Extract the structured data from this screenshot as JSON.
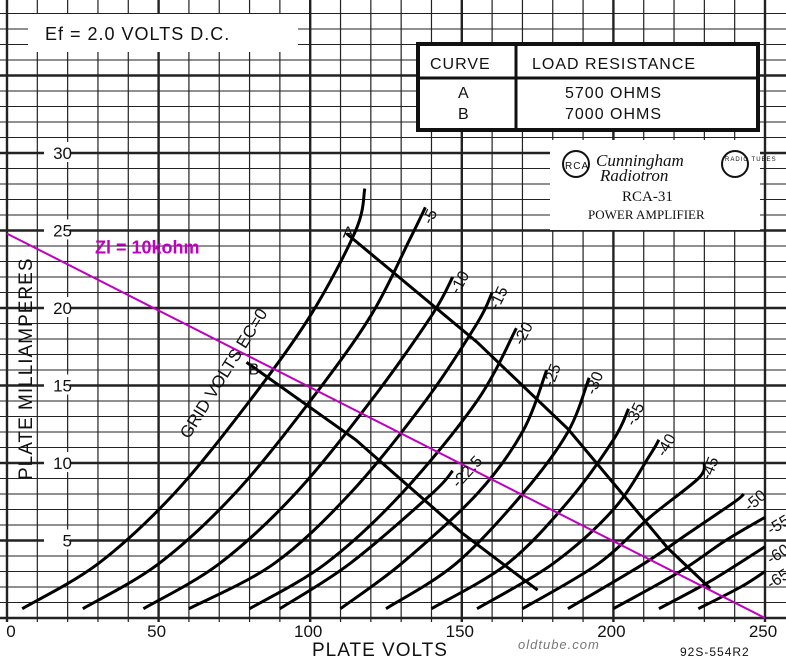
{
  "chart_data": {
    "type": "line",
    "header_text": "Ef = 2.0 VOLTS D.C.",
    "xlabel": "PLATE VOLTS",
    "ylabel": "PLATE MILLIAMPERES",
    "xlim": [
      0,
      250
    ],
    "ylim": [
      0,
      30
    ],
    "x_ticks": [
      "0",
      "50",
      "100",
      "150",
      "200",
      "250"
    ],
    "y_ticks": [
      "5",
      "10",
      "15",
      "20",
      "25",
      "30"
    ],
    "grid": true,
    "brand_line1": "Cunningham",
    "brand_line2": "Radiotron",
    "logo_left": "RCA",
    "logo_right": "RADIO TUBES",
    "tube_name": "RCA-31",
    "tube_desc": "POWER AMPLIFIER",
    "grid_volts_label": "GRID VOLTS EC=0",
    "footer_code": "92S-554R2",
    "watermark": "oldtube.com",
    "load_table": {
      "headers": [
        "CURVE",
        "LOAD RESISTANCE"
      ],
      "rows": [
        [
          "A",
          "5700 OHMS"
        ],
        [
          "B",
          "7000 OHMS"
        ]
      ]
    },
    "series": [
      {
        "label": "EC=0",
        "points": [
          [
            5,
            0.6
          ],
          [
            30,
            3.5
          ],
          [
            55,
            8
          ],
          [
            80,
            14
          ],
          [
            100,
            19.5
          ],
          [
            115,
            25
          ],
          [
            118,
            27.7
          ]
        ]
      },
      {
        "label": "-5",
        "points": [
          [
            25,
            0.6
          ],
          [
            50,
            3.5
          ],
          [
            75,
            8
          ],
          [
            100,
            14
          ],
          [
            120,
            19.5
          ],
          [
            133,
            24.5
          ],
          [
            138,
            26.5
          ]
        ]
      },
      {
        "label": "-10",
        "points": [
          [
            45,
            0.6
          ],
          [
            70,
            3.5
          ],
          [
            95,
            8
          ],
          [
            120,
            14
          ],
          [
            140,
            19.5
          ],
          [
            147,
            22
          ]
        ]
      },
      {
        "label": "-15",
        "points": [
          [
            60,
            0.6
          ],
          [
            88,
            3.5
          ],
          [
            113,
            8
          ],
          [
            138,
            14
          ],
          [
            155,
            19
          ],
          [
            160,
            21
          ]
        ]
      },
      {
        "label": "-20",
        "points": [
          [
            80,
            0.6
          ],
          [
            105,
            3.5
          ],
          [
            130,
            8
          ],
          [
            155,
            14
          ],
          [
            168,
            18.7
          ]
        ]
      },
      {
        "label": "-22.5",
        "points": [
          [
            90,
            0.6
          ],
          [
            113,
            3.5
          ],
          [
            140,
            8
          ],
          [
            147,
            9.5
          ]
        ]
      },
      {
        "label": "-25",
        "points": [
          [
            110,
            0.6
          ],
          [
            130,
            3.5
          ],
          [
            155,
            8
          ],
          [
            170,
            12
          ],
          [
            178,
            16
          ]
        ]
      },
      {
        "label": "-30",
        "points": [
          [
            125,
            0.6
          ],
          [
            148,
            3.5
          ],
          [
            170,
            8
          ],
          [
            185,
            12
          ],
          [
            192,
            15.5
          ]
        ]
      },
      {
        "label": "-35",
        "points": [
          [
            140,
            0.6
          ],
          [
            165,
            3.5
          ],
          [
            185,
            7.5
          ],
          [
            200,
            11.5
          ],
          [
            205,
            13.5
          ]
        ]
      },
      {
        "label": "-40",
        "points": [
          [
            155,
            0.6
          ],
          [
            180,
            3.5
          ],
          [
            200,
            7
          ],
          [
            212,
            10.5
          ],
          [
            215,
            11.5
          ]
        ]
      },
      {
        "label": "-45",
        "points": [
          [
            170,
            0.6
          ],
          [
            195,
            3.5
          ],
          [
            212,
            6.5
          ],
          [
            228,
            9
          ],
          [
            230,
            10
          ]
        ]
      },
      {
        "label": "-50",
        "points": [
          [
            185,
            0.6
          ],
          [
            210,
            3.5
          ],
          [
            225,
            5.5
          ],
          [
            240,
            7.5
          ],
          [
            243,
            8
          ]
        ]
      },
      {
        "label": "-55",
        "points": [
          [
            200,
            0.6
          ],
          [
            222,
            3
          ],
          [
            237,
            5
          ],
          [
            250,
            6.5
          ]
        ]
      },
      {
        "label": "-60",
        "points": [
          [
            215,
            0.6
          ],
          [
            233,
            2.5
          ],
          [
            250,
            4.6
          ]
        ]
      },
      {
        "label": "-65",
        "points": [
          [
            228,
            0.6
          ],
          [
            242,
            2
          ],
          [
            250,
            3
          ]
        ]
      }
    ],
    "load_lines": [
      {
        "name": "A",
        "points": [
          [
            112,
            24.8
          ],
          [
            155,
            17.8
          ],
          [
            185,
            12.2
          ],
          [
            218,
            4.5
          ],
          [
            232,
            1.9
          ]
        ]
      },
      {
        "name": "B",
        "points": [
          [
            79,
            16.5
          ],
          [
            115,
            11.5
          ],
          [
            150,
            5.5
          ],
          [
            175,
            1.8
          ]
        ]
      },
      {
        "name": "Zl = 10kohm",
        "color": "#c000c0",
        "points": [
          [
            0,
            24.8
          ],
          [
            250,
            0
          ]
        ]
      }
    ]
  }
}
